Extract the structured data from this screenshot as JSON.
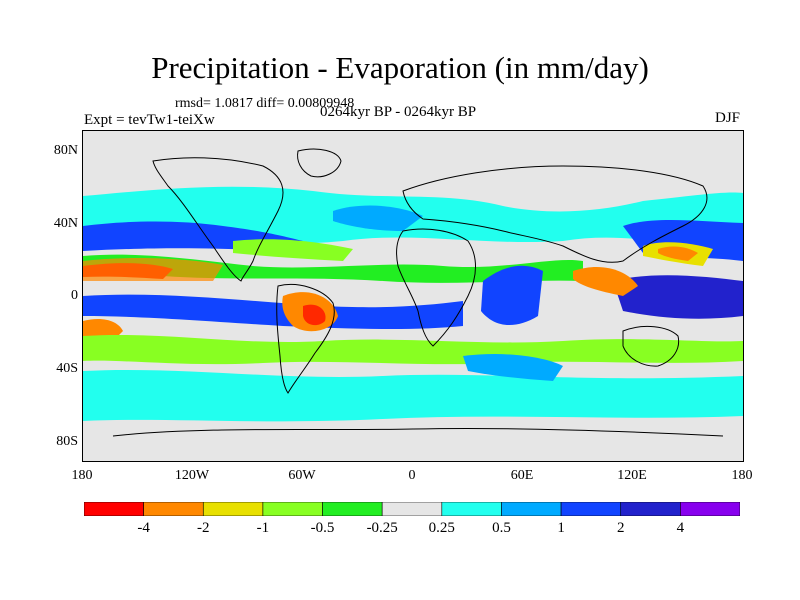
{
  "title": "Precipitation - Evaporation (in mm/day)",
  "stats": "rmsd= 1.0817 diff= 0.00809948",
  "expt": "Expt = tevTw1-teiXw",
  "period": "0264kyr BP - 0264kyr BP",
  "season": "DJF",
  "lat_ticks": [
    "80N",
    "40N",
    "0",
    "40S",
    "80S"
  ],
  "lon_ticks": [
    "180",
    "120W",
    "60W",
    "0",
    "60E",
    "120E",
    "180"
  ],
  "colorbar": {
    "labels": [
      "-4",
      "-2",
      "-1",
      "-0.5",
      "-0.25",
      "0.25",
      "0.5",
      "1",
      "2",
      "4"
    ],
    "colors": [
      "#ff0000",
      "#ff8800",
      "#e8e000",
      "#88ff22",
      "#22ee22",
      "#e6e6e6",
      "#22ffee",
      "#00aaff",
      "#1144ff",
      "#2222cc",
      "#8800ee"
    ]
  },
  "map_colors": {
    "background": "#e6e6e6",
    "coast": "#000000"
  }
}
